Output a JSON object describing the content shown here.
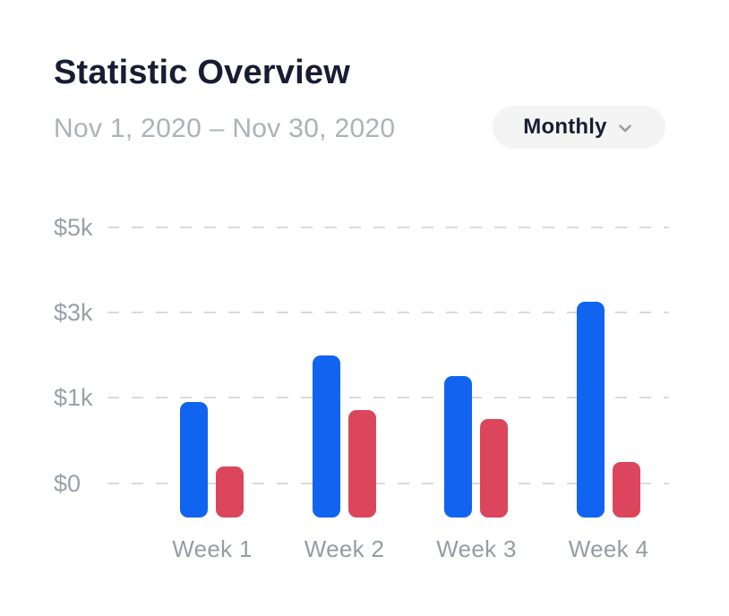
{
  "header": {
    "title": "Statistic Overview",
    "date_range": "Nov 1, 2020 – Nov 30, 2020",
    "period_dropdown": {
      "selected": "Monthly",
      "icon": "chevron-down-icon"
    }
  },
  "chart_data": {
    "type": "bar",
    "title": "Statistic Overview",
    "subtitle": "Nov 1, 2020 – Nov 30, 2020",
    "categories": [
      "Week 1",
      "Week 2",
      "Week 3",
      "Week 4"
    ],
    "series": [
      {
        "name": "blue",
        "color": "#1164f0",
        "values": [
          950,
          2000,
          1500,
          3250
        ]
      },
      {
        "name": "red",
        "color": "#db465c",
        "values": [
          200,
          850,
          750,
          250
        ]
      }
    ],
    "y_ticks": [
      {
        "label": "$0",
        "value": 0
      },
      {
        "label": "$1k",
        "value": 1000
      },
      {
        "label": "$3k",
        "value": 3000
      },
      {
        "label": "$5k",
        "value": 5000
      }
    ],
    "axis_layout": "ticks evenly spaced; scale non-linear above $1k",
    "grid": "dashed-horizontal",
    "legend_position": "none",
    "xlabel": "",
    "ylabel": ""
  },
  "colors": {
    "bar_blue": "#1164f0",
    "bar_red": "#db465c",
    "title_text": "#191d33",
    "muted_text": "#adb1b8",
    "axis_text": "#9aa0a9",
    "gridline": "#d9dadd",
    "dropdown_bg": "#f4f4f5",
    "chevron": "#9b9fa5"
  }
}
